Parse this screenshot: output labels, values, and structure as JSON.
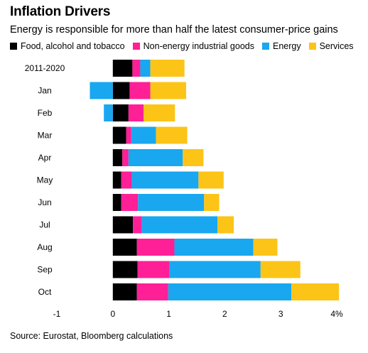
{
  "title": "Inflation Drivers",
  "subtitle": "Energy is responsible for more than half the latest consumer-price gains",
  "source": "Source: Eurostat, Bloomberg calculations",
  "colors": {
    "food": "#000000",
    "non_energy": "#ff1f96",
    "energy": "#19a7f0",
    "services": "#fcc417"
  },
  "legend": [
    {
      "label": "Food, alcohol and tobacco",
      "color": "#000000"
    },
    {
      "label": "Non-energy industrial goods",
      "color": "#ff1f96"
    },
    {
      "label": "Energy",
      "color": "#19a7f0"
    },
    {
      "label": "Services",
      "color": "#fcc417"
    }
  ],
  "chart_data": {
    "type": "bar",
    "orientation": "horizontal",
    "stacked": true,
    "categories": [
      "2011-2020",
      "Jan",
      "Feb",
      "Mar",
      "Apr",
      "May",
      "Jun",
      "Jul",
      "Aug",
      "Sep",
      "Oct"
    ],
    "series": [
      {
        "name": "Food, alcohol and tobacco",
        "color": "#000000",
        "values": [
          0.35,
          0.3,
          0.28,
          0.24,
          0.17,
          0.15,
          0.15,
          0.36,
          0.43,
          0.44,
          0.43
        ]
      },
      {
        "name": "Non-energy industrial goods",
        "color": "#ff1f96",
        "values": [
          0.14,
          0.37,
          0.27,
          0.09,
          0.11,
          0.19,
          0.3,
          0.16,
          0.67,
          0.57,
          0.56
        ]
      },
      {
        "name": "Energy",
        "color": "#19a7f0",
        "values": [
          0.18,
          -0.41,
          -0.16,
          0.44,
          0.97,
          1.19,
          1.18,
          1.35,
          1.41,
          1.63,
          2.2
        ]
      },
      {
        "name": "Services",
        "color": "#fcc417",
        "values": [
          0.61,
          0.64,
          0.56,
          0.56,
          0.37,
          0.45,
          0.27,
          0.29,
          0.43,
          0.71,
          0.85
        ]
      }
    ],
    "xlim": [
      -1,
      4
    ],
    "xticks": [
      -1,
      0,
      1,
      2,
      3,
      4
    ],
    "xtick_labels": [
      "-1",
      "0",
      "1",
      "2",
      "3",
      "4%"
    ],
    "xlabel": "",
    "ylabel": "",
    "legend_position": "top-left",
    "grid": false
  }
}
